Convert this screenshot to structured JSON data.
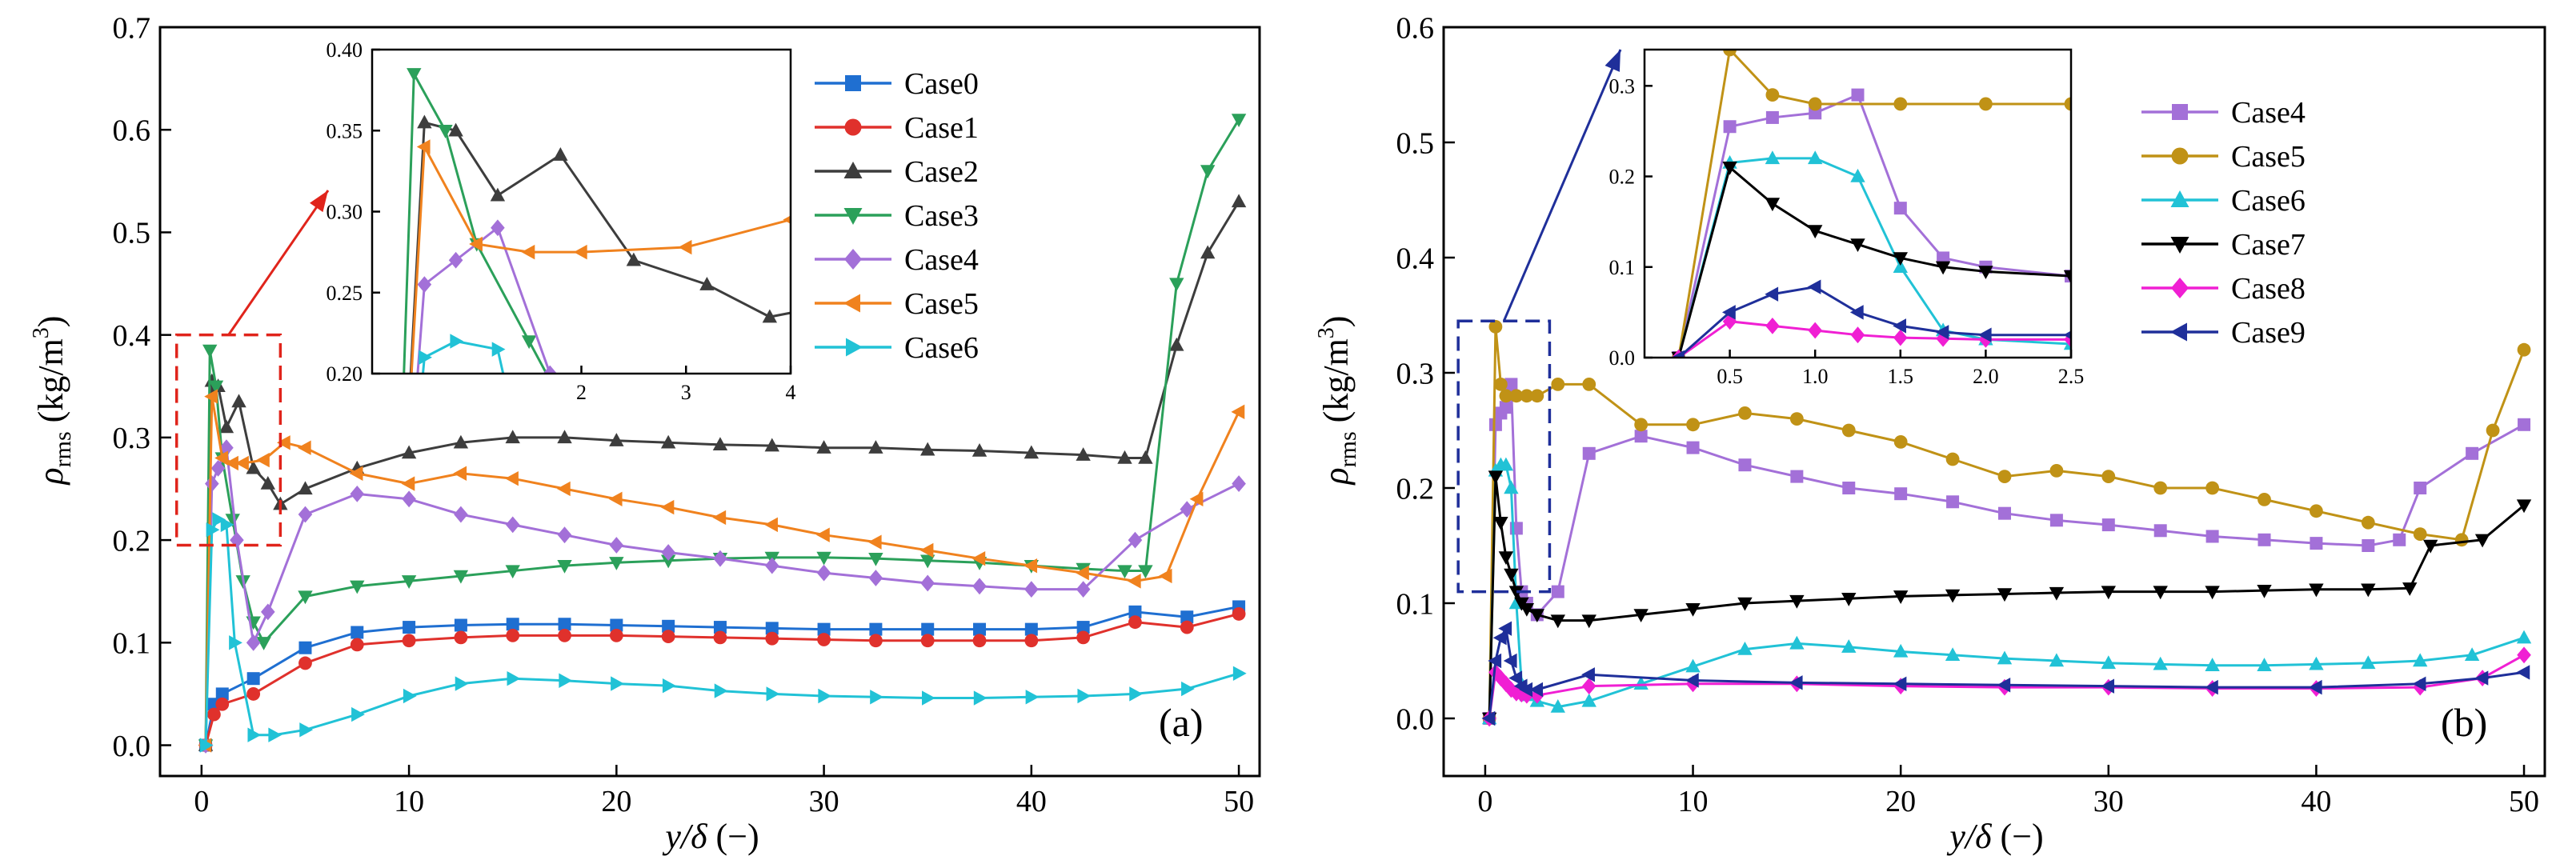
{
  "chart_data": [
    {
      "panel_label": "(a)",
      "type": "line",
      "ylabel_symbol": "ρ",
      "ylabel_sub": "rms",
      "ylabel_units": "(kg/m",
      "ylabel_exp": "3",
      "ylabel_close": ")",
      "xlabel_italic": "y/δ",
      "xlabel_units": " (−)",
      "xlim": [
        -2,
        51
      ],
      "ylim": [
        -0.03,
        0.7
      ],
      "xticks": [
        0,
        10,
        20,
        30,
        40,
        50
      ],
      "yticks": [
        0.0,
        0.1,
        0.2,
        0.3,
        0.4,
        0.5,
        0.6,
        0.7
      ],
      "xtick_labels": [
        "0",
        "10",
        "20",
        "30",
        "40",
        "50"
      ],
      "ytick_labels": [
        "0.0",
        "0.1",
        "0.2",
        "0.3",
        "0.4",
        "0.5",
        "0.6",
        "0.7"
      ],
      "legend": "top-right",
      "inset": {
        "xlim": [
          0,
          4
        ],
        "ylim": [
          0.2,
          0.4
        ],
        "xticks": [
          2,
          3,
          4
        ],
        "yticks": [
          0.2,
          0.25,
          0.3,
          0.35,
          0.4
        ],
        "xtick_labels": [
          "2",
          "3",
          "4"
        ],
        "ytick_labels": [
          "0.20",
          "0.25",
          "0.30",
          "0.35",
          "0.40"
        ],
        "zoom_box": {
          "x": [
            -1.2,
            3.8
          ],
          "y": [
            0.195,
            0.4
          ]
        }
      },
      "series": [
        {
          "name": "Case0",
          "color": "#1f6fd1",
          "marker": "square",
          "x": [
            0.2,
            0.6,
            1.0,
            2.5,
            5,
            7.5,
            10,
            12.5,
            15,
            17.5,
            20,
            22.5,
            25,
            27.5,
            30,
            32.5,
            35,
            37.5,
            40,
            42.5,
            45,
            47.5,
            50
          ],
          "y": [
            0.0,
            0.04,
            0.05,
            0.065,
            0.095,
            0.11,
            0.115,
            0.117,
            0.118,
            0.118,
            0.117,
            0.116,
            0.115,
            0.114,
            0.113,
            0.113,
            0.113,
            0.113,
            0.113,
            0.115,
            0.13,
            0.125,
            0.135
          ]
        },
        {
          "name": "Case1",
          "color": "#e0312c",
          "marker": "circle",
          "x": [
            0.2,
            0.6,
            1.0,
            2.5,
            5,
            7.5,
            10,
            12.5,
            15,
            17.5,
            20,
            22.5,
            25,
            27.5,
            30,
            32.5,
            35,
            37.5,
            40,
            42.5,
            45,
            47.5,
            50
          ],
          "y": [
            0.0,
            0.03,
            0.04,
            0.05,
            0.08,
            0.098,
            0.102,
            0.105,
            0.107,
            0.107,
            0.107,
            0.106,
            0.105,
            0.104,
            0.103,
            0.102,
            0.102,
            0.102,
            0.102,
            0.105,
            0.12,
            0.115,
            0.128
          ]
        },
        {
          "name": "Case2",
          "color": "#3d3d3d",
          "marker": "triangle-up",
          "x": [
            0.2,
            0.5,
            0.8,
            1.2,
            1.8,
            2.5,
            3.2,
            3.8,
            5,
            7.5,
            10,
            12.5,
            15,
            17.5,
            20,
            22.5,
            25,
            27.5,
            30,
            32.5,
            35,
            37.5,
            40,
            42.5,
            44.5,
            45.5,
            47,
            48.5,
            50
          ],
          "y": [
            0.0,
            0.355,
            0.35,
            0.31,
            0.335,
            0.27,
            0.255,
            0.235,
            0.25,
            0.27,
            0.285,
            0.295,
            0.3,
            0.3,
            0.297,
            0.295,
            0.293,
            0.292,
            0.29,
            0.29,
            0.288,
            0.287,
            0.285,
            0.283,
            0.28,
            0.28,
            0.39,
            0.48,
            0.53
          ]
        },
        {
          "name": "Case3",
          "color": "#2ba05a",
          "marker": "triangle-down",
          "x": [
            0.2,
            0.4,
            0.7,
            1.0,
            1.5,
            2.0,
            2.5,
            3.0,
            5,
            7.5,
            10,
            12.5,
            15,
            17.5,
            20,
            22.5,
            25,
            27.5,
            30,
            32.5,
            35,
            37.5,
            40,
            42.5,
            44.5,
            45.5,
            47,
            48.5,
            50
          ],
          "y": [
            0.0,
            0.385,
            0.35,
            0.28,
            0.22,
            0.16,
            0.12,
            0.1,
            0.145,
            0.155,
            0.16,
            0.165,
            0.17,
            0.175,
            0.178,
            0.18,
            0.182,
            0.183,
            0.183,
            0.182,
            0.18,
            0.178,
            0.175,
            0.172,
            0.17,
            0.17,
            0.45,
            0.56,
            0.61
          ]
        },
        {
          "name": "Case4",
          "color": "#a370d8",
          "marker": "diamond",
          "x": [
            0.2,
            0.5,
            0.8,
            1.2,
            1.7,
            2.5,
            3.2,
            5,
            7.5,
            10,
            12.5,
            15,
            17.5,
            20,
            22.5,
            25,
            27.5,
            30,
            32.5,
            35,
            37.5,
            40,
            42.5,
            45,
            47.5,
            50
          ],
          "y": [
            0.0,
            0.255,
            0.27,
            0.29,
            0.2,
            0.1,
            0.13,
            0.225,
            0.245,
            0.24,
            0.225,
            0.215,
            0.205,
            0.195,
            0.188,
            0.182,
            0.175,
            0.168,
            0.163,
            0.158,
            0.155,
            0.152,
            0.152,
            0.2,
            0.23,
            0.255
          ]
        },
        {
          "name": "Case5",
          "color": "#f0821e",
          "marker": "triangle-left",
          "x": [
            0.2,
            0.5,
            1.0,
            1.5,
            2.0,
            3.0,
            4.0,
            5,
            7.5,
            10,
            12.5,
            15,
            17.5,
            20,
            22.5,
            25,
            27.5,
            30,
            32.5,
            35,
            37.5,
            40,
            42.5,
            45,
            46.5,
            48,
            50
          ],
          "y": [
            0.0,
            0.34,
            0.28,
            0.275,
            0.275,
            0.278,
            0.295,
            0.29,
            0.265,
            0.255,
            0.265,
            0.26,
            0.25,
            0.24,
            0.232,
            0.222,
            0.215,
            0.205,
            0.198,
            0.19,
            0.182,
            0.175,
            0.168,
            0.16,
            0.165,
            0.24,
            0.325
          ]
        },
        {
          "name": "Case6",
          "color": "#21c2d6",
          "marker": "triangle-right",
          "x": [
            0.2,
            0.5,
            0.8,
            1.2,
            1.6,
            2.5,
            3.5,
            5,
            7.5,
            10,
            12.5,
            15,
            17.5,
            20,
            22.5,
            25,
            27.5,
            30,
            32.5,
            35,
            37.5,
            40,
            42.5,
            45,
            47.5,
            50
          ],
          "y": [
            0.0,
            0.21,
            0.22,
            0.215,
            0.1,
            0.01,
            0.01,
            0.015,
            0.03,
            0.048,
            0.06,
            0.065,
            0.063,
            0.06,
            0.058,
            0.053,
            0.05,
            0.048,
            0.047,
            0.046,
            0.046,
            0.047,
            0.048,
            0.05,
            0.055,
            0.07
          ]
        }
      ]
    },
    {
      "panel_label": "(b)",
      "type": "line",
      "ylabel_symbol": "ρ",
      "ylabel_sub": "rms",
      "ylabel_units": "(kg/m",
      "ylabel_exp": "3",
      "ylabel_close": ")",
      "xlabel_italic": "y/δ",
      "xlabel_units": " (−)",
      "xlim": [
        -2,
        51
      ],
      "ylim": [
        -0.05,
        0.6
      ],
      "xticks": [
        0,
        10,
        20,
        30,
        40,
        50
      ],
      "yticks": [
        0.0,
        0.1,
        0.2,
        0.3,
        0.4,
        0.5,
        0.6
      ],
      "xtick_labels": [
        "0",
        "10",
        "20",
        "30",
        "40",
        "50"
      ],
      "ytick_labels": [
        "0.0",
        "0.1",
        "0.2",
        "0.3",
        "0.4",
        "0.5",
        "0.6"
      ],
      "legend": "top-right",
      "inset": {
        "xlim": [
          0,
          2.5
        ],
        "ylim": [
          0.0,
          0.34
        ],
        "xticks": [
          0.5,
          1.0,
          1.5,
          2.0,
          2.5
        ],
        "yticks": [
          0.0,
          0.1,
          0.2,
          0.3
        ],
        "xtick_labels": [
          "0.5",
          "1.0",
          "1.5",
          "2.0",
          "2.5"
        ],
        "ytick_labels": [
          "0.0",
          "0.1",
          "0.2",
          "0.3"
        ],
        "zoom_box": {
          "x": [
            -1.3,
            3.1
          ],
          "y": [
            0.11,
            0.345
          ]
        }
      },
      "series": [
        {
          "name": "Case4",
          "color": "#a370d8",
          "marker": "square",
          "x": [
            0.2,
            0.5,
            0.75,
            1.0,
            1.25,
            1.5,
            1.75,
            2.0,
            2.5,
            3.5,
            5,
            7.5,
            10,
            12.5,
            15,
            17.5,
            20,
            22.5,
            25,
            27.5,
            30,
            32.5,
            35,
            37.5,
            40,
            42.5,
            44,
            45,
            47.5,
            50
          ],
          "y": [
            0.0,
            0.255,
            0.265,
            0.27,
            0.29,
            0.165,
            0.11,
            0.1,
            0.09,
            0.11,
            0.23,
            0.245,
            0.235,
            0.22,
            0.21,
            0.2,
            0.195,
            0.188,
            0.178,
            0.172,
            0.168,
            0.163,
            0.158,
            0.155,
            0.152,
            0.15,
            0.155,
            0.2,
            0.23,
            0.255
          ]
        },
        {
          "name": "Case5",
          "color": "#c09216",
          "marker": "circle",
          "x": [
            0.2,
            0.5,
            0.75,
            1.0,
            1.5,
            2.0,
            2.5,
            3.5,
            5,
            7.5,
            10,
            12.5,
            15,
            17.5,
            20,
            22.5,
            25,
            27.5,
            30,
            32.5,
            35,
            37.5,
            40,
            42.5,
            45,
            47,
            48.5,
            50
          ],
          "y": [
            0.0,
            0.34,
            0.29,
            0.28,
            0.28,
            0.28,
            0.28,
            0.29,
            0.29,
            0.255,
            0.255,
            0.265,
            0.26,
            0.25,
            0.24,
            0.225,
            0.21,
            0.215,
            0.21,
            0.2,
            0.2,
            0.19,
            0.18,
            0.17,
            0.16,
            0.155,
            0.25,
            0.32
          ]
        },
        {
          "name": "Case6",
          "color": "#21c2d6",
          "marker": "triangle-up",
          "x": [
            0.2,
            0.5,
            0.75,
            1.0,
            1.25,
            1.5,
            1.75,
            2.0,
            2.5,
            3.5,
            5,
            7.5,
            10,
            12.5,
            15,
            17.5,
            20,
            22.5,
            25,
            27.5,
            30,
            32.5,
            35,
            37.5,
            40,
            42.5,
            45,
            47.5,
            50
          ],
          "y": [
            0.0,
            0.215,
            0.22,
            0.22,
            0.2,
            0.1,
            0.03,
            0.02,
            0.015,
            0.01,
            0.015,
            0.03,
            0.045,
            0.06,
            0.065,
            0.062,
            0.058,
            0.055,
            0.052,
            0.05,
            0.048,
            0.047,
            0.046,
            0.046,
            0.047,
            0.048,
            0.05,
            0.055,
            0.07
          ]
        },
        {
          "name": "Case7",
          "color": "#000000",
          "marker": "triangle-down",
          "x": [
            0.2,
            0.5,
            0.75,
            1.0,
            1.25,
            1.5,
            1.75,
            2.0,
            2.5,
            3.5,
            5,
            7.5,
            10,
            12.5,
            15,
            17.5,
            20,
            22.5,
            25,
            27.5,
            30,
            32.5,
            35,
            37.5,
            40,
            42.5,
            44.5,
            45.5,
            48,
            50
          ],
          "y": [
            0.0,
            0.21,
            0.17,
            0.14,
            0.125,
            0.11,
            0.1,
            0.095,
            0.09,
            0.085,
            0.085,
            0.09,
            0.095,
            0.1,
            0.102,
            0.104,
            0.106,
            0.107,
            0.108,
            0.109,
            0.11,
            0.11,
            0.11,
            0.111,
            0.112,
            0.112,
            0.113,
            0.15,
            0.155,
            0.185
          ]
        },
        {
          "name": "Case8",
          "color": "#f01fd3",
          "marker": "diamond",
          "x": [
            0.2,
            0.5,
            0.75,
            1.0,
            1.25,
            1.5,
            1.75,
            2.0,
            2.5,
            5,
            10,
            15,
            20,
            25,
            30,
            35,
            40,
            45,
            48,
            50
          ],
          "y": [
            0.0,
            0.04,
            0.035,
            0.03,
            0.025,
            0.022,
            0.021,
            0.02,
            0.02,
            0.028,
            0.03,
            0.03,
            0.028,
            0.027,
            0.027,
            0.026,
            0.026,
            0.027,
            0.035,
            0.055
          ]
        },
        {
          "name": "Case9",
          "color": "#1f2f9a",
          "marker": "triangle-left",
          "x": [
            0.2,
            0.5,
            0.75,
            1.0,
            1.25,
            1.5,
            1.75,
            2.0,
            2.5,
            5,
            10,
            15,
            20,
            25,
            30,
            35,
            40,
            45,
            48,
            50
          ],
          "y": [
            0.0,
            0.05,
            0.07,
            0.078,
            0.05,
            0.035,
            0.028,
            0.025,
            0.025,
            0.038,
            0.033,
            0.031,
            0.03,
            0.029,
            0.028,
            0.027,
            0.027,
            0.03,
            0.035,
            0.04
          ]
        }
      ]
    }
  ]
}
